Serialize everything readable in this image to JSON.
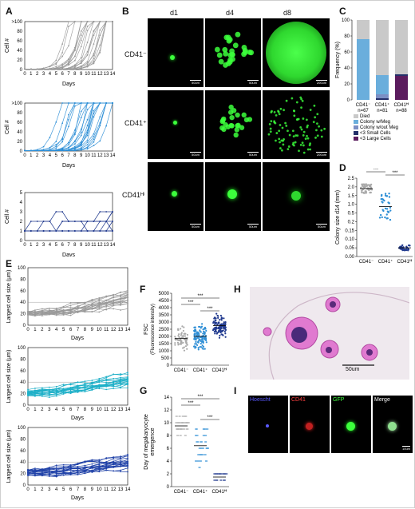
{
  "panel_labels": {
    "A": "A",
    "B": "B",
    "C": "C",
    "D": "D",
    "E": "E",
    "F": "F",
    "G": "G",
    "H": "H",
    "I": "I"
  },
  "panelA": {
    "xlabel": "Days",
    "ylabel": "Cell #",
    "x_ticks": [
      "0",
      "1",
      "2",
      "3",
      "4",
      "5",
      "6",
      "7",
      "8",
      "9",
      "10",
      "11",
      "12",
      "13",
      "14"
    ],
    "top": {
      "y_ticks": [
        "0",
        "20",
        "40",
        "60",
        "80",
        ">100"
      ]
    },
    "mid": {
      "y_ticks": [
        "0",
        "20",
        "40",
        "60",
        "80",
        ">100"
      ]
    },
    "bottom": {
      "y_ticks": [
        "0",
        "1",
        "2",
        "3",
        "4",
        "5"
      ]
    }
  },
  "panelB": {
    "col_headers": [
      "d1",
      "d4",
      "d8"
    ],
    "row_labels": [
      "CD41⁻",
      "CD41⁺",
      "CD41ᴴⁱ"
    ],
    "scale_bars": [
      "50um",
      "50um",
      "200um",
      "50um",
      "50um",
      "200um",
      "50um",
      "50um",
      "50um"
    ]
  },
  "panelC": {
    "ylabel": "Frequency (%)",
    "y_ticks": [
      "0",
      "20",
      "40",
      "60",
      "80",
      "100"
    ],
    "categories": [
      "CD41⁻",
      "CD41⁺",
      "CD41ᴴⁱ"
    ],
    "n_labels": [
      "n=67",
      "n=81",
      "n=88"
    ],
    "legend": [
      "Died",
      "Colony w/Meg",
      "Colony w/out Meg",
      "<3 Small Cells",
      "<3 Large Cells"
    ],
    "colors": [
      "#c9c9c9",
      "#6aaedc",
      "#7b8fc4",
      "#24306a",
      "#5b1c5e"
    ]
  },
  "chart_data": [
    {
      "type": "bar",
      "stacked": true,
      "title": "",
      "ylabel": "Frequency (%)",
      "ylim": [
        0,
        100
      ],
      "categories": [
        "CD41⁻",
        "CD41⁺",
        "CD41ᴴⁱ"
      ],
      "series": [
        {
          "name": "<3 Large Cells",
          "values": [
            0,
            0,
            30
          ]
        },
        {
          "name": "<3 Small Cells",
          "values": [
            0,
            2,
            2
          ]
        },
        {
          "name": "Colony w/out Meg",
          "values": [
            0,
            5,
            0
          ]
        },
        {
          "name": "Colony w/Meg",
          "values": [
            76,
            24,
            0
          ]
        },
        {
          "name": "Died",
          "values": [
            24,
            69,
            68
          ]
        }
      ]
    },
    {
      "type": "scatter",
      "ylabel": "Colony size d14 (mm)",
      "categories": [
        "CD41⁻",
        "CD41⁺",
        "CD41ᴴⁱ"
      ],
      "y_ticks": [
        "0.00",
        "0.05",
        "0.10",
        "0.15",
        "0.2",
        "0.5",
        "1.0",
        "1.5",
        "2.0",
        "2.5"
      ],
      "means": [
        1.95,
        1.0,
        0.05
      ],
      "significance": [
        "***",
        "***",
        "***"
      ]
    },
    {
      "type": "scatter",
      "ylabel": "FSC (Fluorescence intensity)",
      "categories": [
        "CD41⁻",
        "CD41⁺",
        "CD41ᴴⁱ"
      ],
      "y_ticks": [
        "0",
        "500",
        "1000",
        "1500",
        "2000",
        "2500",
        "3000",
        "3500",
        "4000",
        "4500",
        "5000"
      ],
      "means": [
        1850,
        2000,
        2750
      ],
      "significance": [
        "***",
        "***",
        "***"
      ]
    },
    {
      "type": "scatter",
      "ylabel": "Day of megakaryocyte emergence",
      "categories": [
        "CD41⁻",
        "CD41⁺",
        "CD41ᴴⁱ"
      ],
      "y_ticks": [
        "0",
        "2",
        "4",
        "6",
        "8",
        "10",
        "12",
        "14"
      ],
      "means": [
        9.5,
        6.4,
        1.5
      ],
      "significance": [
        "***",
        "***",
        "***"
      ]
    }
  ],
  "panelE": {
    "xlabel": "Days",
    "ylabel": "Largest cell size (μm)",
    "x_ticks": [
      "0",
      "1",
      "2",
      "3",
      "4",
      "5",
      "6",
      "7",
      "8",
      "9",
      "10",
      "11",
      "12",
      "13",
      "14"
    ],
    "y_ticks": [
      "0",
      "20",
      "40",
      "60",
      "80",
      "100"
    ]
  },
  "panelD": {
    "ylabel": "Colony size d14 (mm)",
    "y_ticks": [
      "0.00",
      "0.05",
      "0.10",
      "0.15",
      "0.2",
      "0.5",
      "1.0",
      "1.5",
      "2.0",
      "2.5"
    ],
    "categories": [
      "CD41⁻",
      "CD41⁺",
      "CD41ᴴⁱ"
    ],
    "sig": "***"
  },
  "panelF": {
    "ylabel1": "FSC",
    "ylabel2": "(Fluorescence intensity)",
    "y_ticks": [
      "0",
      "500",
      "1000",
      "1500",
      "2000",
      "2500",
      "3000",
      "3500",
      "4000",
      "4500",
      "5000"
    ],
    "categories": [
      "CD41⁻",
      "CD41⁺",
      "CD41ᴴⁱ"
    ],
    "sig": "***"
  },
  "panelG": {
    "ylabel1": "Day of megakaryocyte",
    "ylabel2": "emergence",
    "y_ticks": [
      "0",
      "2",
      "4",
      "6",
      "8",
      "10",
      "12",
      "14"
    ],
    "categories": [
      "CD41⁻",
      "CD41⁺",
      "CD41ᴴⁱ"
    ],
    "sig": "***"
  },
  "panelH": {
    "scale": "50um"
  },
  "panelI": {
    "headers": [
      "Hoescht",
      "CD41",
      "GFP",
      "Merge"
    ],
    "header_colors": [
      "#5a5aff",
      "#ff4040",
      "#40ff40",
      "#ffffff"
    ],
    "scale": "10um"
  }
}
